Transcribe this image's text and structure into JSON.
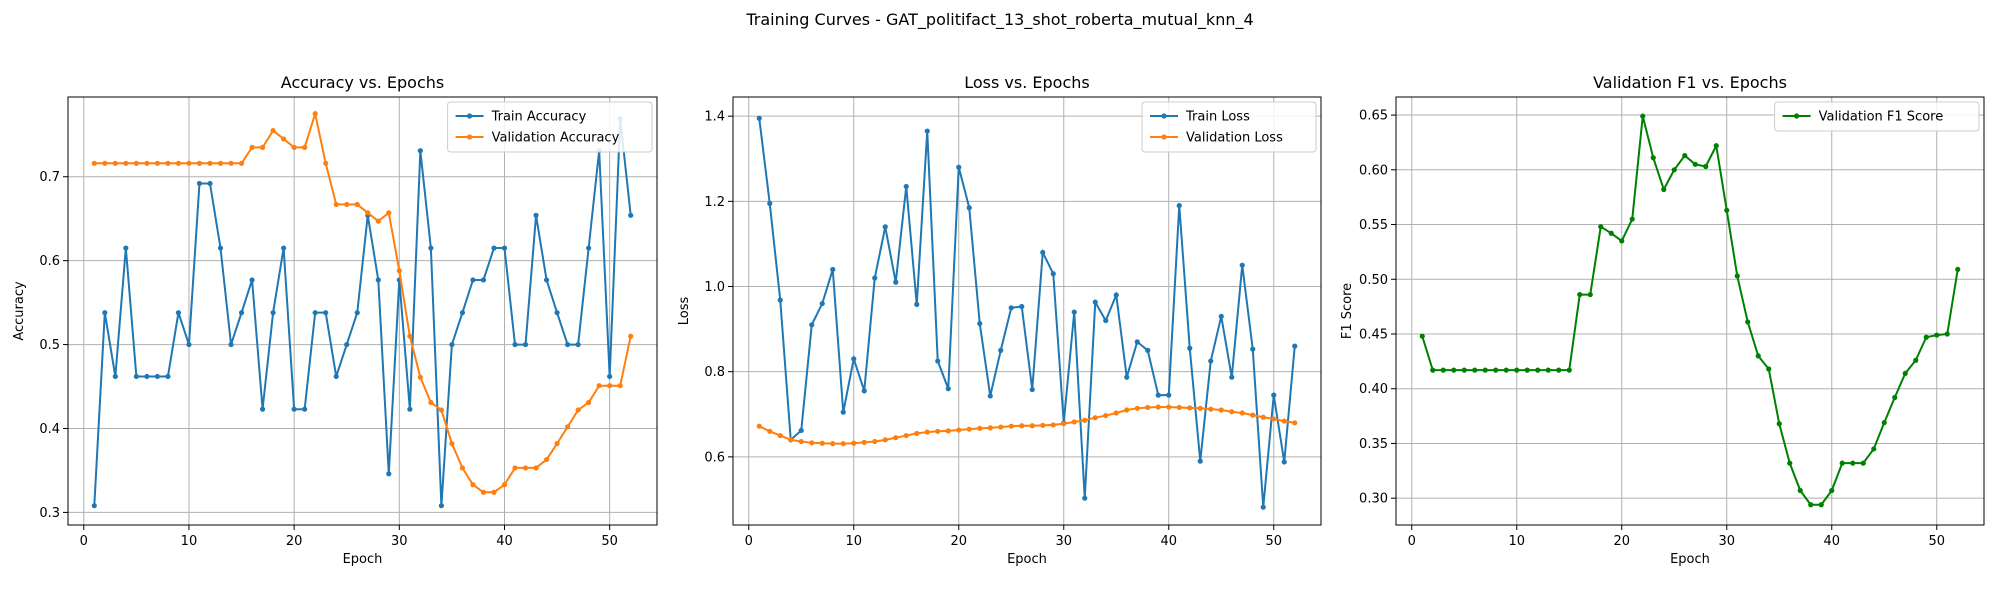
{
  "suptitle": "Training Curves - GAT_politifact_13_shot_roberta_mutual_knn_4",
  "chart_data": [
    {
      "type": "line",
      "title": "Accuracy vs. Epochs",
      "xlabel": "Epoch",
      "ylabel": "Accuracy",
      "xlim": [
        -1.5,
        54.5
      ],
      "ylim": [
        0.285,
        0.795
      ],
      "xticks": [
        0,
        10,
        20,
        30,
        40,
        50
      ],
      "yticks": [
        0.3,
        0.4,
        0.5,
        0.6,
        0.7
      ],
      "ytick_labels": [
        "0.3",
        "0.4",
        "0.5",
        "0.6",
        "0.7"
      ],
      "grid": true,
      "legend_position": "top-right",
      "x": [
        1,
        2,
        3,
        4,
        5,
        6,
        7,
        8,
        9,
        10,
        11,
        12,
        13,
        14,
        15,
        16,
        17,
        18,
        19,
        20,
        21,
        22,
        23,
        24,
        25,
        26,
        27,
        28,
        29,
        30,
        31,
        32,
        33,
        34,
        35,
        36,
        37,
        38,
        39,
        40,
        41,
        42,
        43,
        44,
        45,
        46,
        47,
        48,
        49,
        50,
        51,
        52
      ],
      "series": [
        {
          "name": "Train Accuracy",
          "color": "#1f77b4",
          "values": [
            0.308,
            0.538,
            0.462,
            0.615,
            0.462,
            0.462,
            0.462,
            0.462,
            0.538,
            0.5,
            0.692,
            0.692,
            0.615,
            0.5,
            0.538,
            0.577,
            0.423,
            0.538,
            0.615,
            0.423,
            0.423,
            0.538,
            0.538,
            0.462,
            0.5,
            0.538,
            0.654,
            0.577,
            0.346,
            0.577,
            0.423,
            0.731,
            0.615,
            0.308,
            0.5,
            0.538,
            0.577,
            0.577,
            0.615,
            0.615,
            0.5,
            0.5,
            0.654,
            0.577,
            0.538,
            0.5,
            0.5,
            0.615,
            0.731,
            0.462,
            0.769,
            0.654
          ]
        },
        {
          "name": "Validation Accuracy",
          "color": "#ff7f0e",
          "values": [
            0.716,
            0.716,
            0.716,
            0.716,
            0.716,
            0.716,
            0.716,
            0.716,
            0.716,
            0.716,
            0.716,
            0.716,
            0.716,
            0.716,
            0.716,
            0.735,
            0.735,
            0.755,
            0.745,
            0.735,
            0.735,
            0.775,
            0.716,
            0.667,
            0.667,
            0.667,
            0.657,
            0.647,
            0.657,
            0.588,
            0.51,
            0.461,
            0.431,
            0.422,
            0.382,
            0.353,
            0.333,
            0.324,
            0.324,
            0.333,
            0.353,
            0.353,
            0.353,
            0.363,
            0.382,
            0.402,
            0.422,
            0.431,
            0.451,
            0.451,
            0.451,
            0.51
          ]
        }
      ]
    },
    {
      "type": "line",
      "title": "Loss vs. Epochs",
      "xlabel": "Epoch",
      "ylabel": "Loss",
      "xlim": [
        -1.5,
        54.5
      ],
      "ylim": [
        0.44,
        1.445
      ],
      "xticks": [
        0,
        10,
        20,
        30,
        40,
        50
      ],
      "yticks": [
        0.6,
        0.8,
        1.0,
        1.2,
        1.4
      ],
      "ytick_labels": [
        "0.6",
        "0.8",
        "1.0",
        "1.2",
        "1.4"
      ],
      "grid": true,
      "legend_position": "top-right",
      "x": [
        1,
        2,
        3,
        4,
        5,
        6,
        7,
        8,
        9,
        10,
        11,
        12,
        13,
        14,
        15,
        16,
        17,
        18,
        19,
        20,
        21,
        22,
        23,
        24,
        25,
        26,
        27,
        28,
        29,
        30,
        31,
        32,
        33,
        34,
        35,
        36,
        37,
        38,
        39,
        40,
        41,
        42,
        43,
        44,
        45,
        46,
        47,
        48,
        49,
        50,
        51,
        52
      ],
      "series": [
        {
          "name": "Train Loss",
          "color": "#1f77b4",
          "values": [
            1.395,
            1.195,
            0.968,
            0.64,
            0.662,
            0.91,
            0.96,
            1.04,
            0.705,
            0.83,
            0.755,
            1.02,
            1.14,
            1.01,
            1.235,
            0.958,
            1.365,
            0.825,
            0.76,
            1.28,
            1.185,
            0.913,
            0.743,
            0.85,
            0.95,
            0.953,
            0.758,
            1.08,
            1.03,
            0.68,
            0.94,
            0.503,
            0.963,
            0.92,
            0.98,
            0.787,
            0.87,
            0.85,
            0.745,
            0.745,
            1.19,
            0.855,
            0.59,
            0.825,
            0.93,
            0.787,
            1.05,
            0.853,
            0.482,
            0.745,
            0.588,
            0.86
          ]
        },
        {
          "name": "Validation Loss",
          "color": "#ff7f0e",
          "values": [
            0.672,
            0.66,
            0.65,
            0.64,
            0.636,
            0.633,
            0.632,
            0.631,
            0.631,
            0.632,
            0.634,
            0.636,
            0.64,
            0.645,
            0.65,
            0.655,
            0.658,
            0.66,
            0.661,
            0.663,
            0.665,
            0.667,
            0.668,
            0.67,
            0.672,
            0.673,
            0.673,
            0.674,
            0.675,
            0.678,
            0.682,
            0.686,
            0.692,
            0.697,
            0.703,
            0.71,
            0.714,
            0.716,
            0.717,
            0.717,
            0.716,
            0.715,
            0.714,
            0.712,
            0.71,
            0.706,
            0.703,
            0.698,
            0.693,
            0.689,
            0.684,
            0.68
          ]
        }
      ]
    },
    {
      "type": "line",
      "title": "Validation F1 vs. Epochs",
      "xlabel": "Epoch",
      "ylabel": "F1 Score",
      "xlim": [
        -1.5,
        54.5
      ],
      "ylim": [
        0.2755,
        0.6665
      ],
      "xticks": [
        0,
        10,
        20,
        30,
        40,
        50
      ],
      "yticks": [
        0.3,
        0.35,
        0.4,
        0.45,
        0.5,
        0.55,
        0.6,
        0.65
      ],
      "ytick_labels": [
        "0.30",
        "0.35",
        "0.40",
        "0.45",
        "0.50",
        "0.55",
        "0.60",
        "0.65"
      ],
      "grid": true,
      "legend_position": "top-right",
      "x": [
        1,
        2,
        3,
        4,
        5,
        6,
        7,
        8,
        9,
        10,
        11,
        12,
        13,
        14,
        15,
        16,
        17,
        18,
        19,
        20,
        21,
        22,
        23,
        24,
        25,
        26,
        27,
        28,
        29,
        30,
        31,
        32,
        33,
        34,
        35,
        36,
        37,
        38,
        39,
        40,
        41,
        42,
        43,
        44,
        45,
        46,
        47,
        48,
        49,
        50,
        51,
        52
      ],
      "series": [
        {
          "name": "Validation F1 Score",
          "color": "#008000",
          "values": [
            0.448,
            0.417,
            0.417,
            0.417,
            0.417,
            0.417,
            0.417,
            0.417,
            0.417,
            0.417,
            0.417,
            0.417,
            0.417,
            0.417,
            0.417,
            0.486,
            0.486,
            0.548,
            0.542,
            0.535,
            0.555,
            0.649,
            0.611,
            0.582,
            0.6,
            0.613,
            0.605,
            0.603,
            0.622,
            0.563,
            0.503,
            0.461,
            0.43,
            0.418,
            0.368,
            0.332,
            0.307,
            0.294,
            0.294,
            0.307,
            0.332,
            0.332,
            0.332,
            0.345,
            0.369,
            0.392,
            0.414,
            0.426,
            0.447,
            0.449,
            0.45,
            0.509
          ]
        }
      ]
    }
  ]
}
